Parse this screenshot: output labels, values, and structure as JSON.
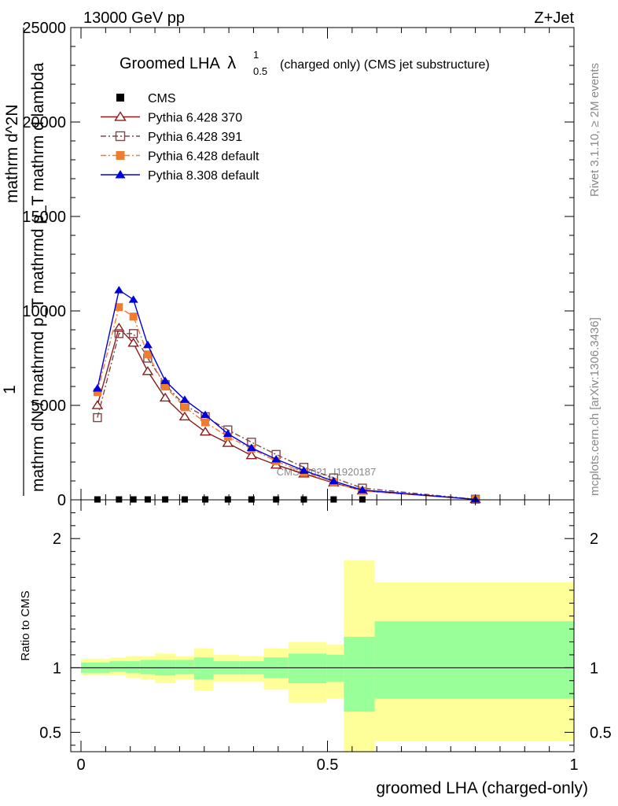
{
  "header": {
    "energy_label": "13000 GeV pp",
    "process_label": "Z+Jet"
  },
  "side_labels": {
    "rivet": "Rivet 3.1.10, ≥ 2M events",
    "mcplots": "mcplots.cern.ch [arXiv:1306.3436]"
  },
  "chart_data": [
    {
      "type": "line",
      "title": "Groomed LHA",
      "title_symbol": "λ",
      "title_sup": "1",
      "title_sub": "0.5",
      "title_suffix": "(charged only) (CMS jet substructure)",
      "ylabel_lines": [
        "1",
        "mathrm dN / mathrmd p_T mathrmd p_T mathrm d lambda",
        "mathrm d^2N"
      ],
      "xlabel": "",
      "xlim": [
        0,
        1
      ],
      "ylim": [
        0,
        25000
      ],
      "y_ticks": [
        0,
        5000,
        10000,
        15000,
        20000,
        25000
      ],
      "y_tick_labels": [
        "0",
        "5000",
        "10000",
        "15000",
        "20000",
        "25000"
      ],
      "watermark": "CMS_2021_I1920187",
      "legend_position": "top-left",
      "series": [
        {
          "name": "CMS",
          "color": "#000000",
          "marker": "filled-square",
          "x": [
            0.0333,
            0.0771,
            0.1063,
            0.1354,
            0.1708,
            0.2104,
            0.2521,
            0.2979,
            0.3458,
            0.3958,
            0.4521,
            0.5125,
            0.5708
          ],
          "y": [
            20,
            20,
            20,
            20,
            20,
            20,
            20,
            20,
            20,
            20,
            20,
            20,
            20
          ]
        },
        {
          "name": "Pythia 6.428 370",
          "color": "#8b1a1a",
          "marker": "open-triangle",
          "dash": "",
          "x": [
            0.0333,
            0.0771,
            0.1063,
            0.1354,
            0.1708,
            0.2104,
            0.2521,
            0.2979,
            0.3458,
            0.3958,
            0.4521,
            0.5125,
            0.5708,
            0.8
          ],
          "y": [
            5000,
            9100,
            8300,
            6800,
            5400,
            4400,
            3600,
            3000,
            2350,
            1850,
            1380,
            900,
            480,
            25
          ]
        },
        {
          "name": "Pythia 6.428 391",
          "color": "#7a4a4a",
          "marker": "open-square",
          "dash": "7,3,2,3",
          "x": [
            0.0333,
            0.0771,
            0.1063,
            0.1354,
            0.1708,
            0.2104,
            0.2521,
            0.2979,
            0.3458,
            0.3958,
            0.4521,
            0.5125,
            0.5708,
            0.8
          ],
          "y": [
            4350,
            8800,
            8800,
            7500,
            6100,
            5000,
            4400,
            3700,
            3050,
            2400,
            1720,
            1160,
            620,
            30
          ]
        },
        {
          "name": "Pythia 6.428 default",
          "color": "#f07c30",
          "marker": "filled-square",
          "dash": "7,3,2,3",
          "x": [
            0.0333,
            0.0771,
            0.1063,
            0.1354,
            0.1708,
            0.2104,
            0.2521,
            0.2979,
            0.3458,
            0.3958,
            0.4521,
            0.5125,
            0.5708,
            0.8
          ],
          "y": [
            5700,
            10200,
            9700,
            7700,
            6000,
            4900,
            4100,
            3350,
            2700,
            2050,
            1450,
            920,
            470,
            20
          ]
        },
        {
          "name": "Pythia 8.308 default",
          "color": "#0000dd",
          "marker": "filled-triangle",
          "dash": "",
          "x": [
            0.0333,
            0.0771,
            0.1063,
            0.1354,
            0.1708,
            0.2104,
            0.2521,
            0.2979,
            0.3458,
            0.3958,
            0.4521,
            0.5125,
            0.5708,
            0.8
          ],
          "y": [
            5900,
            11100,
            10600,
            8200,
            6300,
            5300,
            4500,
            3500,
            2750,
            2150,
            1550,
            990,
            520,
            25
          ]
        }
      ]
    },
    {
      "type": "area",
      "ylabel": "Ratio to CMS",
      "xlabel": "groomed LHA (charged-only)",
      "xlim": [
        0,
        1
      ],
      "ylim": [
        0.35,
        2.3
      ],
      "x_ticks": [
        0,
        0.5,
        1
      ],
      "x_tick_labels": [
        "0",
        "0.5",
        "1"
      ],
      "y_ticks": [
        0.5,
        1,
        2
      ],
      "y_tick_labels": [
        "0.5",
        "1",
        "2"
      ],
      "reference_line": 1,
      "bin_edges": [
        0,
        0.0583,
        0.0917,
        0.1208,
        0.15,
        0.1917,
        0.2292,
        0.2688,
        0.3208,
        0.3708,
        0.4208,
        0.4979,
        0.5333,
        0.5958,
        1.0
      ],
      "band_colors": {
        "outer": "#ffff99",
        "inner": "#99ff99"
      },
      "band_outer": [
        [
          0.94,
          1.07
        ],
        [
          0.94,
          1.08
        ],
        [
          0.92,
          1.09
        ],
        [
          0.91,
          1.09
        ],
        [
          0.88,
          1.11
        ],
        [
          0.91,
          1.09
        ],
        [
          0.82,
          1.15
        ],
        [
          0.89,
          1.1
        ],
        [
          0.89,
          1.09
        ],
        [
          0.83,
          1.15
        ],
        [
          0.73,
          1.2
        ],
        [
          0.76,
          1.18
        ],
        [
          0.35,
          1.83
        ],
        [
          0.43,
          1.66
        ]
      ],
      "band_inner": [
        [
          0.96,
          1.04
        ],
        [
          0.97,
          1.05
        ],
        [
          0.96,
          1.05
        ],
        [
          0.95,
          1.06
        ],
        [
          0.94,
          1.06
        ],
        [
          0.95,
          1.06
        ],
        [
          0.91,
          1.08
        ],
        [
          0.95,
          1.05
        ],
        [
          0.95,
          1.05
        ],
        [
          0.92,
          1.08
        ],
        [
          0.88,
          1.11
        ],
        [
          0.89,
          1.1
        ],
        [
          0.66,
          1.24
        ],
        [
          0.76,
          1.36
        ]
      ]
    }
  ]
}
